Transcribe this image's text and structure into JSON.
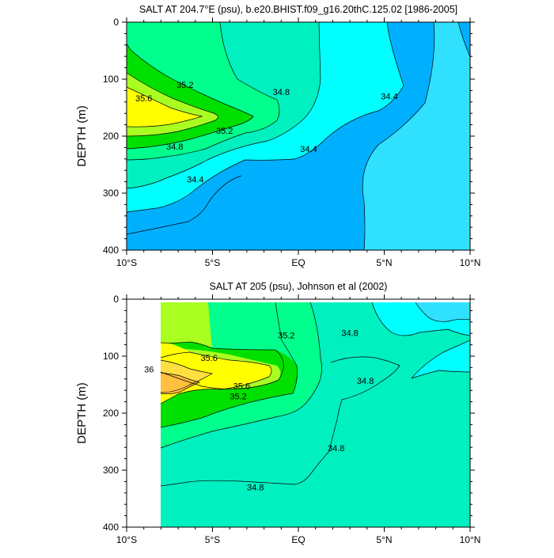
{
  "chart_data": [
    {
      "type": "contour",
      "title": "SALT AT 204.7°E (psu), b.e20.BHIST.f09_g16.20thC.125.02 [1986-2005]",
      "xlabel": "",
      "ylabel": "DEPTH (m)",
      "x_ticks": [
        "10°S",
        "5°S",
        "EQ",
        "5°N",
        "10°N"
      ],
      "x_tick_values": [
        -10,
        -5,
        0,
        5,
        10
      ],
      "xlim": [
        -10,
        10
      ],
      "y_ticks": [
        "0",
        "100",
        "200",
        "300",
        "400"
      ],
      "y_tick_values": [
        0,
        100,
        200,
        300,
        400
      ],
      "ylim": [
        0,
        400
      ],
      "y_inverted": true,
      "contour_levels": [
        34.2,
        34.4,
        34.6,
        34.8,
        35.0,
        35.2,
        35.4,
        35.6
      ],
      "contour_labels": [
        {
          "text": "35.2",
          "lat": -6.6,
          "depth": 110
        },
        {
          "text": "35.6",
          "lat": -9.0,
          "depth": 133
        },
        {
          "text": "34.8",
          "lat": -1.0,
          "depth": 122
        },
        {
          "text": "34.4",
          "lat": 5.3,
          "depth": 130
        },
        {
          "text": "35.2",
          "lat": -4.3,
          "depth": 190
        },
        {
          "text": "34.8",
          "lat": -7.2,
          "depth": 218
        },
        {
          "text": "34.4",
          "lat": 0.6,
          "depth": 222
        },
        {
          "text": "34.4",
          "lat": -6.0,
          "depth": 276
        }
      ]
    },
    {
      "type": "contour",
      "title": "SALT AT 205 (psu), Johnson et al (2002)",
      "xlabel": "",
      "ylabel": "DEPTH (m)",
      "x_ticks": [
        "10°S",
        "5°S",
        "EQ",
        "5°N",
        "10°N"
      ],
      "x_tick_values": [
        -10,
        -5,
        0,
        5,
        10
      ],
      "xlim": [
        -10,
        10
      ],
      "y_ticks": [
        "0",
        "100",
        "200",
        "300",
        "400"
      ],
      "y_tick_values": [
        0,
        100,
        200,
        300,
        400
      ],
      "ylim": [
        0,
        400
      ],
      "y_inverted": true,
      "data_lat_range": [
        -8,
        10
      ],
      "data_depth_range": [
        5,
        400
      ],
      "contour_levels": [
        34.4,
        34.6,
        34.8,
        35.0,
        35.2,
        35.4,
        35.6,
        35.8,
        36.0
      ],
      "contour_labels": [
        {
          "text": "35.6",
          "lat": -5.2,
          "depth": 103
        },
        {
          "text": "36",
          "lat": -8.7,
          "depth": 123
        },
        {
          "text": "35.2",
          "lat": -0.7,
          "depth": 63
        },
        {
          "text": "34.8",
          "lat": 3.0,
          "depth": 59
        },
        {
          "text": "34.8",
          "lat": 3.9,
          "depth": 143
        },
        {
          "text": "35.6",
          "lat": -3.3,
          "depth": 152
        },
        {
          "text": "35.2",
          "lat": -3.5,
          "depth": 170
        },
        {
          "text": "34.8",
          "lat": 2.2,
          "depth": 261
        },
        {
          "text": "34.8",
          "lat": -2.5,
          "depth": 330
        }
      ]
    }
  ]
}
